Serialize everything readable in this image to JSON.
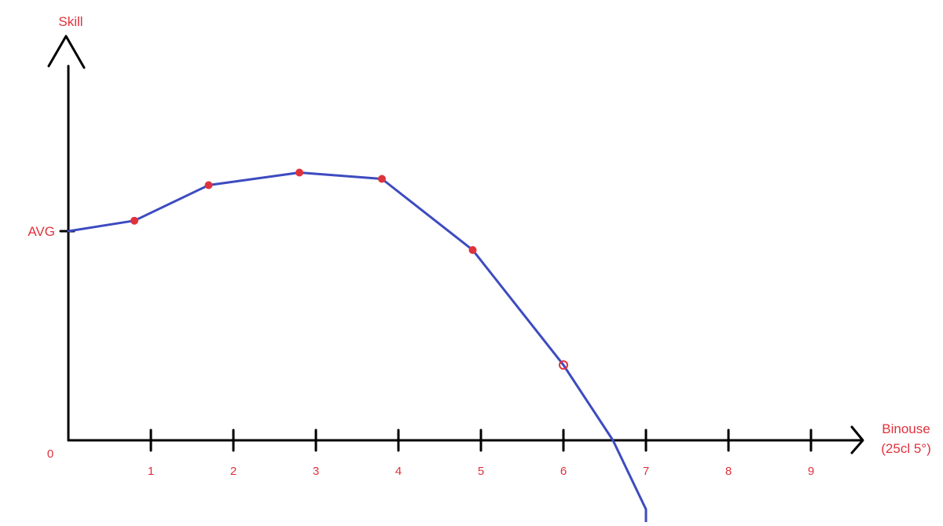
{
  "chart_data": {
    "type": "line",
    "title": "",
    "xlabel": "Binouse",
    "xlabel_sub": "(25cl 5°)",
    "ylabel": "Skill",
    "origin_label": "0",
    "y_reference_label": "AVG",
    "y_reference_value": 1.0,
    "x_ticks": [
      "1",
      "2",
      "3",
      "4",
      "5",
      "6",
      "7",
      "8",
      "9"
    ],
    "xlim": [
      0,
      9.6
    ],
    "ylim": [
      0,
      2.4
    ],
    "legend": "none",
    "grid": false,
    "series": [
      {
        "color": "#3d4bc0",
        "line": [
          {
            "x": 0,
            "y": 1.0
          },
          {
            "x": 0.8,
            "y": 1.05
          },
          {
            "x": 1.7,
            "y": 1.22
          },
          {
            "x": 2.8,
            "y": 1.28
          },
          {
            "x": 3.8,
            "y": 1.25
          },
          {
            "x": 4.9,
            "y": 0.91
          },
          {
            "x": 6.0,
            "y": 0.36
          },
          {
            "x": 6.6,
            "y": 0.0
          },
          {
            "x": 7.0,
            "y": -0.33
          },
          {
            "x": 7.0,
            "y": -0.39
          }
        ],
        "markers": [
          {
            "x": 0.8,
            "y": 1.05
          },
          {
            "x": 1.7,
            "y": 1.22
          },
          {
            "x": 2.8,
            "y": 1.28
          },
          {
            "x": 3.8,
            "y": 1.25
          },
          {
            "x": 4.9,
            "y": 0.91
          },
          {
            "x": 6.0,
            "y": 0.36
          }
        ],
        "marker_color": "#e0323c"
      }
    ]
  }
}
